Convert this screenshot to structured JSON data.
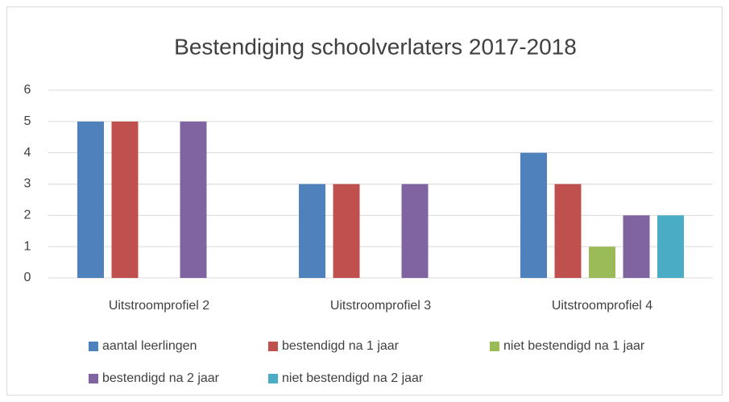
{
  "chart_data": {
    "type": "bar",
    "title": "Bestendiging schoolverlaters 2017-2018",
    "categories": [
      "Uitstroomprofiel 2",
      "Uitstroomprofiel 3",
      "Uitstroomprofiel 4"
    ],
    "series": [
      {
        "name": "aantal leerlingen",
        "color": "#4f81bd",
        "values": [
          5,
          3,
          4
        ]
      },
      {
        "name": "bestendigd na 1 jaar",
        "color": "#c0504d",
        "values": [
          5,
          3,
          3
        ]
      },
      {
        "name": "niet bestendigd na 1 jaar",
        "color": "#9bbb59",
        "values": [
          0,
          0,
          1
        ]
      },
      {
        "name": "bestendigd na 2 jaar",
        "color": "#8064a2",
        "values": [
          5,
          3,
          2
        ]
      },
      {
        "name": "niet bestendigd na 2 jaar",
        "color": "#4bacc6",
        "values": [
          0,
          0,
          2
        ]
      }
    ],
    "ylim": [
      0,
      6
    ],
    "yticks": [
      0,
      1,
      2,
      3,
      4,
      5,
      6
    ],
    "grid": true,
    "legend": "bottom"
  }
}
